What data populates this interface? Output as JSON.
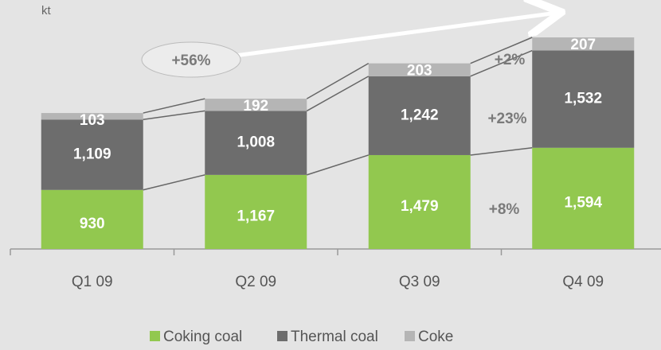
{
  "chart_data": {
    "type": "stacked_bar",
    "y_label": "kt",
    "categories": [
      "Q1 09",
      "Q2 09",
      "Q3 09",
      "Q4 09"
    ],
    "series": [
      {
        "name": "Coking coal",
        "color": "#92c84f",
        "values": [
          930,
          1167,
          1479,
          1594
        ],
        "value_labels": [
          "930",
          "1,167",
          "1,479",
          "1,594"
        ]
      },
      {
        "name": "Thermal coal",
        "color": "#6d6d6d",
        "values": [
          1109,
          1008,
          1242,
          1532
        ],
        "value_labels": [
          "1,109",
          "1,008",
          "1,242",
          "1,532"
        ]
      },
      {
        "name": "Coke",
        "color": "#b5b5b5",
        "values": [
          103,
          192,
          203,
          207
        ],
        "value_labels": [
          "103",
          "192",
          "203",
          "207"
        ]
      }
    ],
    "annotations": [
      "+56%",
      "+2%",
      "+23%",
      "+8%"
    ],
    "legend": "bottom"
  }
}
